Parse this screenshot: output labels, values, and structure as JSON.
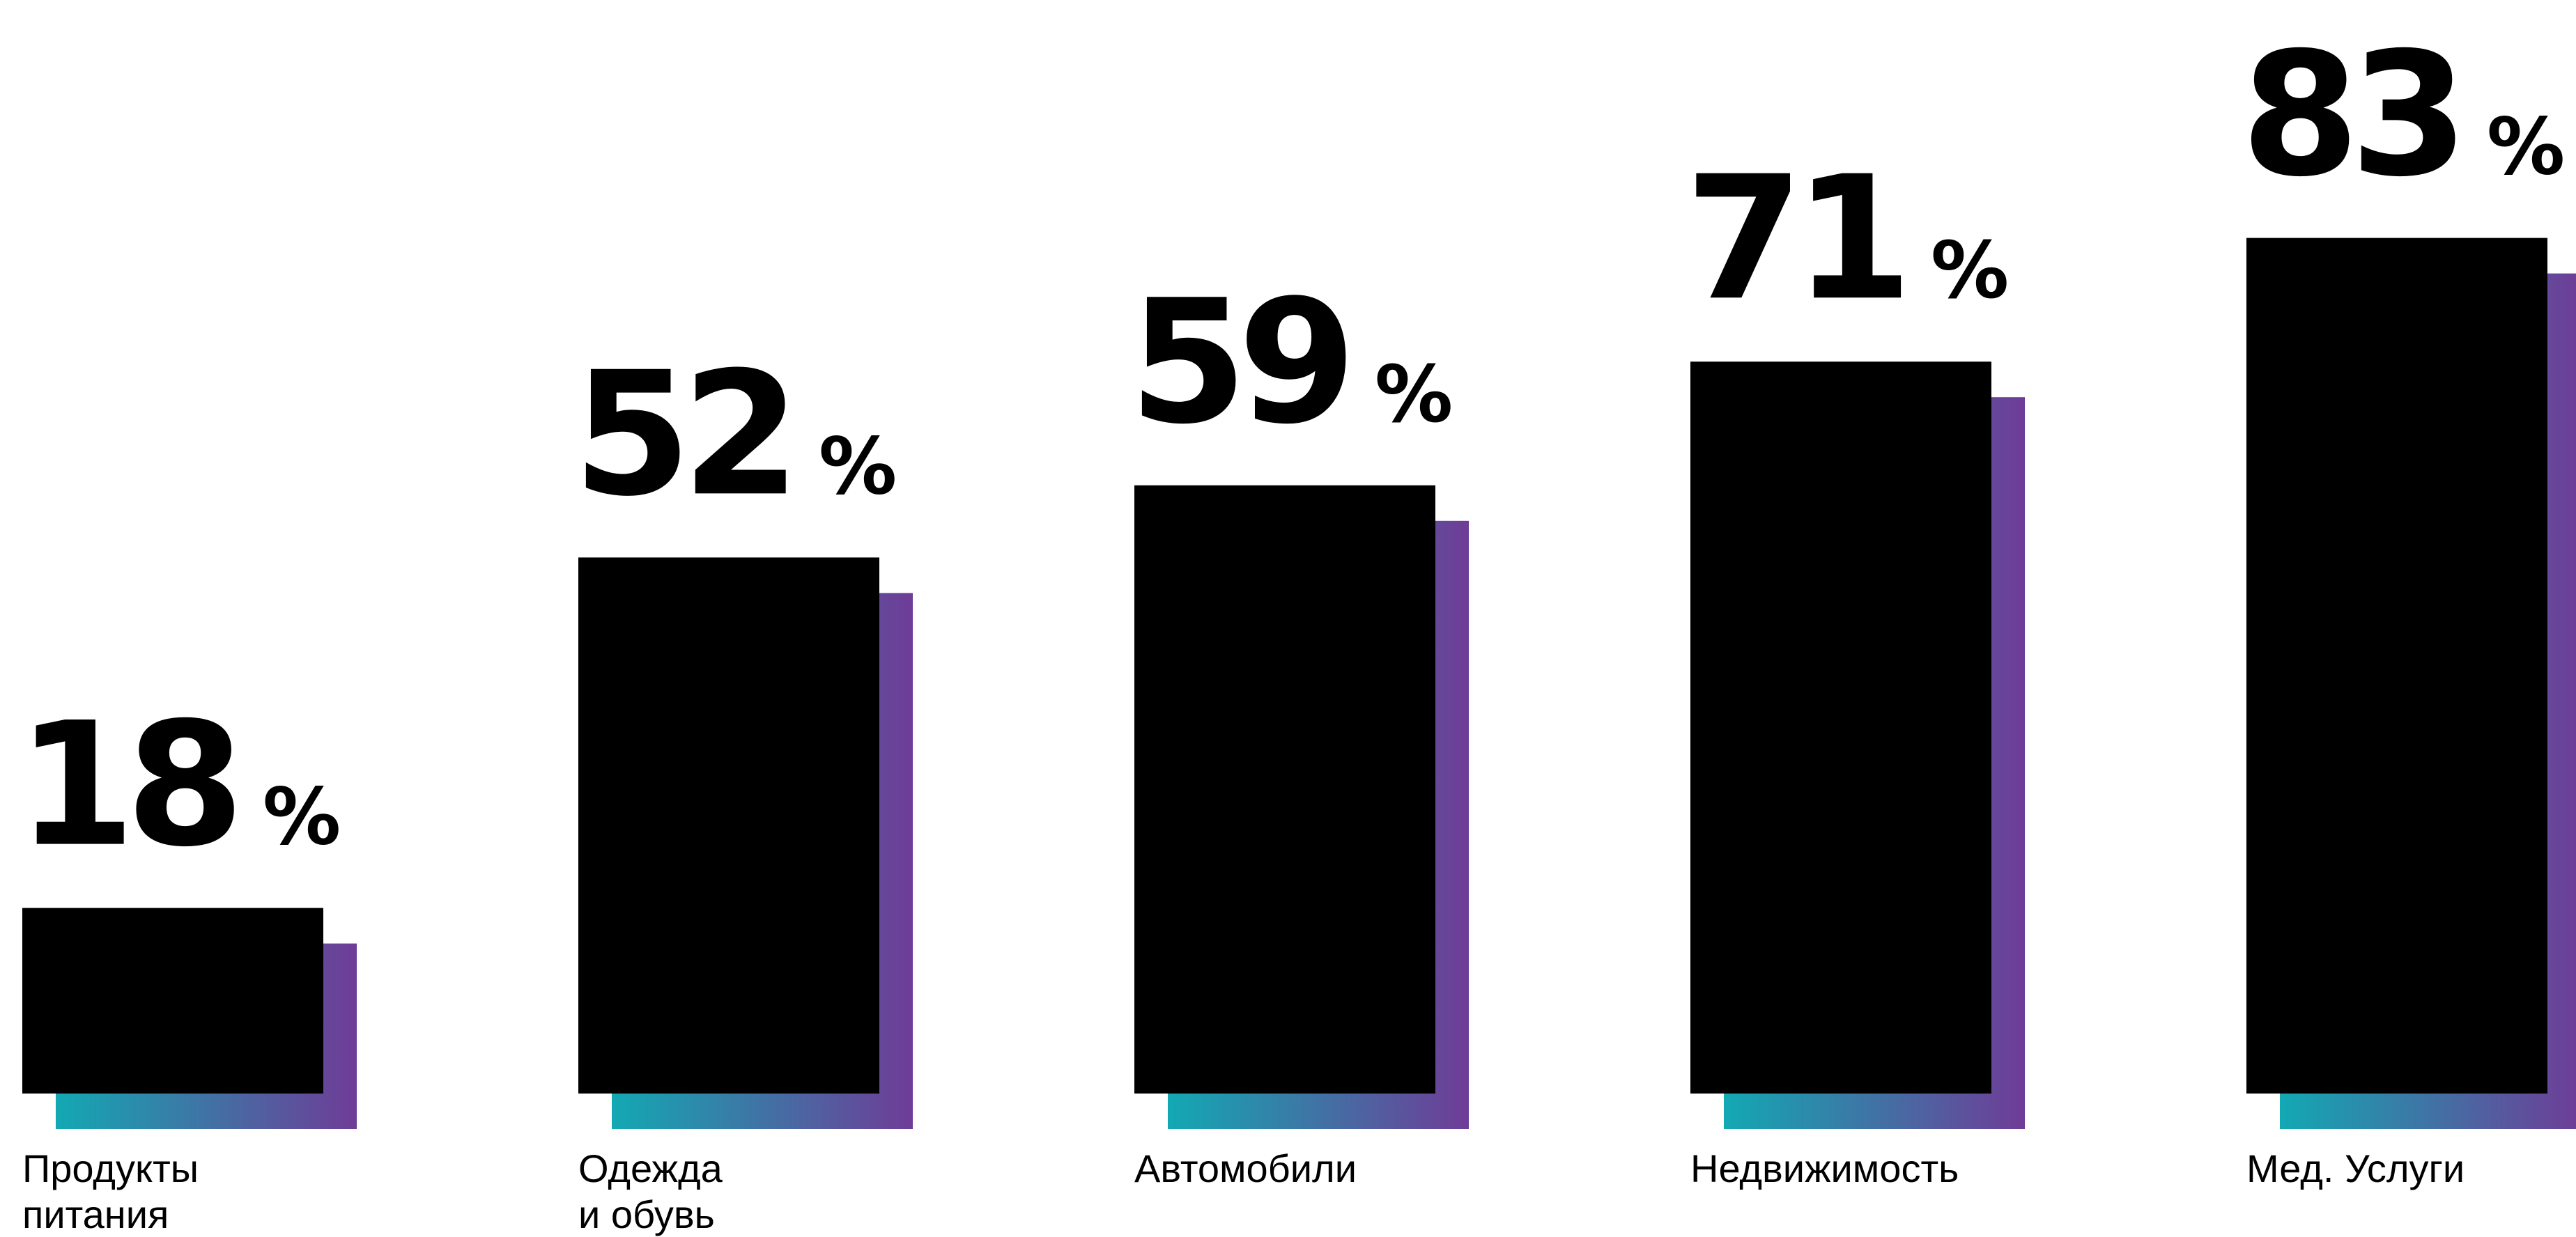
{
  "chart_data": {
    "type": "bar",
    "categories": [
      [
        "Продукты",
        "питания"
      ],
      [
        "Одежда",
        "и обувь"
      ],
      [
        "Автомобили"
      ],
      [
        "Недвижимость"
      ],
      [
        "Мед. Услуги"
      ]
    ],
    "values": [
      18,
      52,
      59,
      71,
      83
    ],
    "unit": "%",
    "ylim": [
      0,
      100
    ],
    "grid": false,
    "legend": "none",
    "colors": {
      "bar": "#000000",
      "shadow_gradient_start": "#12a9b3",
      "shadow_gradient_end": "#6f3c97",
      "text": "#000000"
    }
  }
}
